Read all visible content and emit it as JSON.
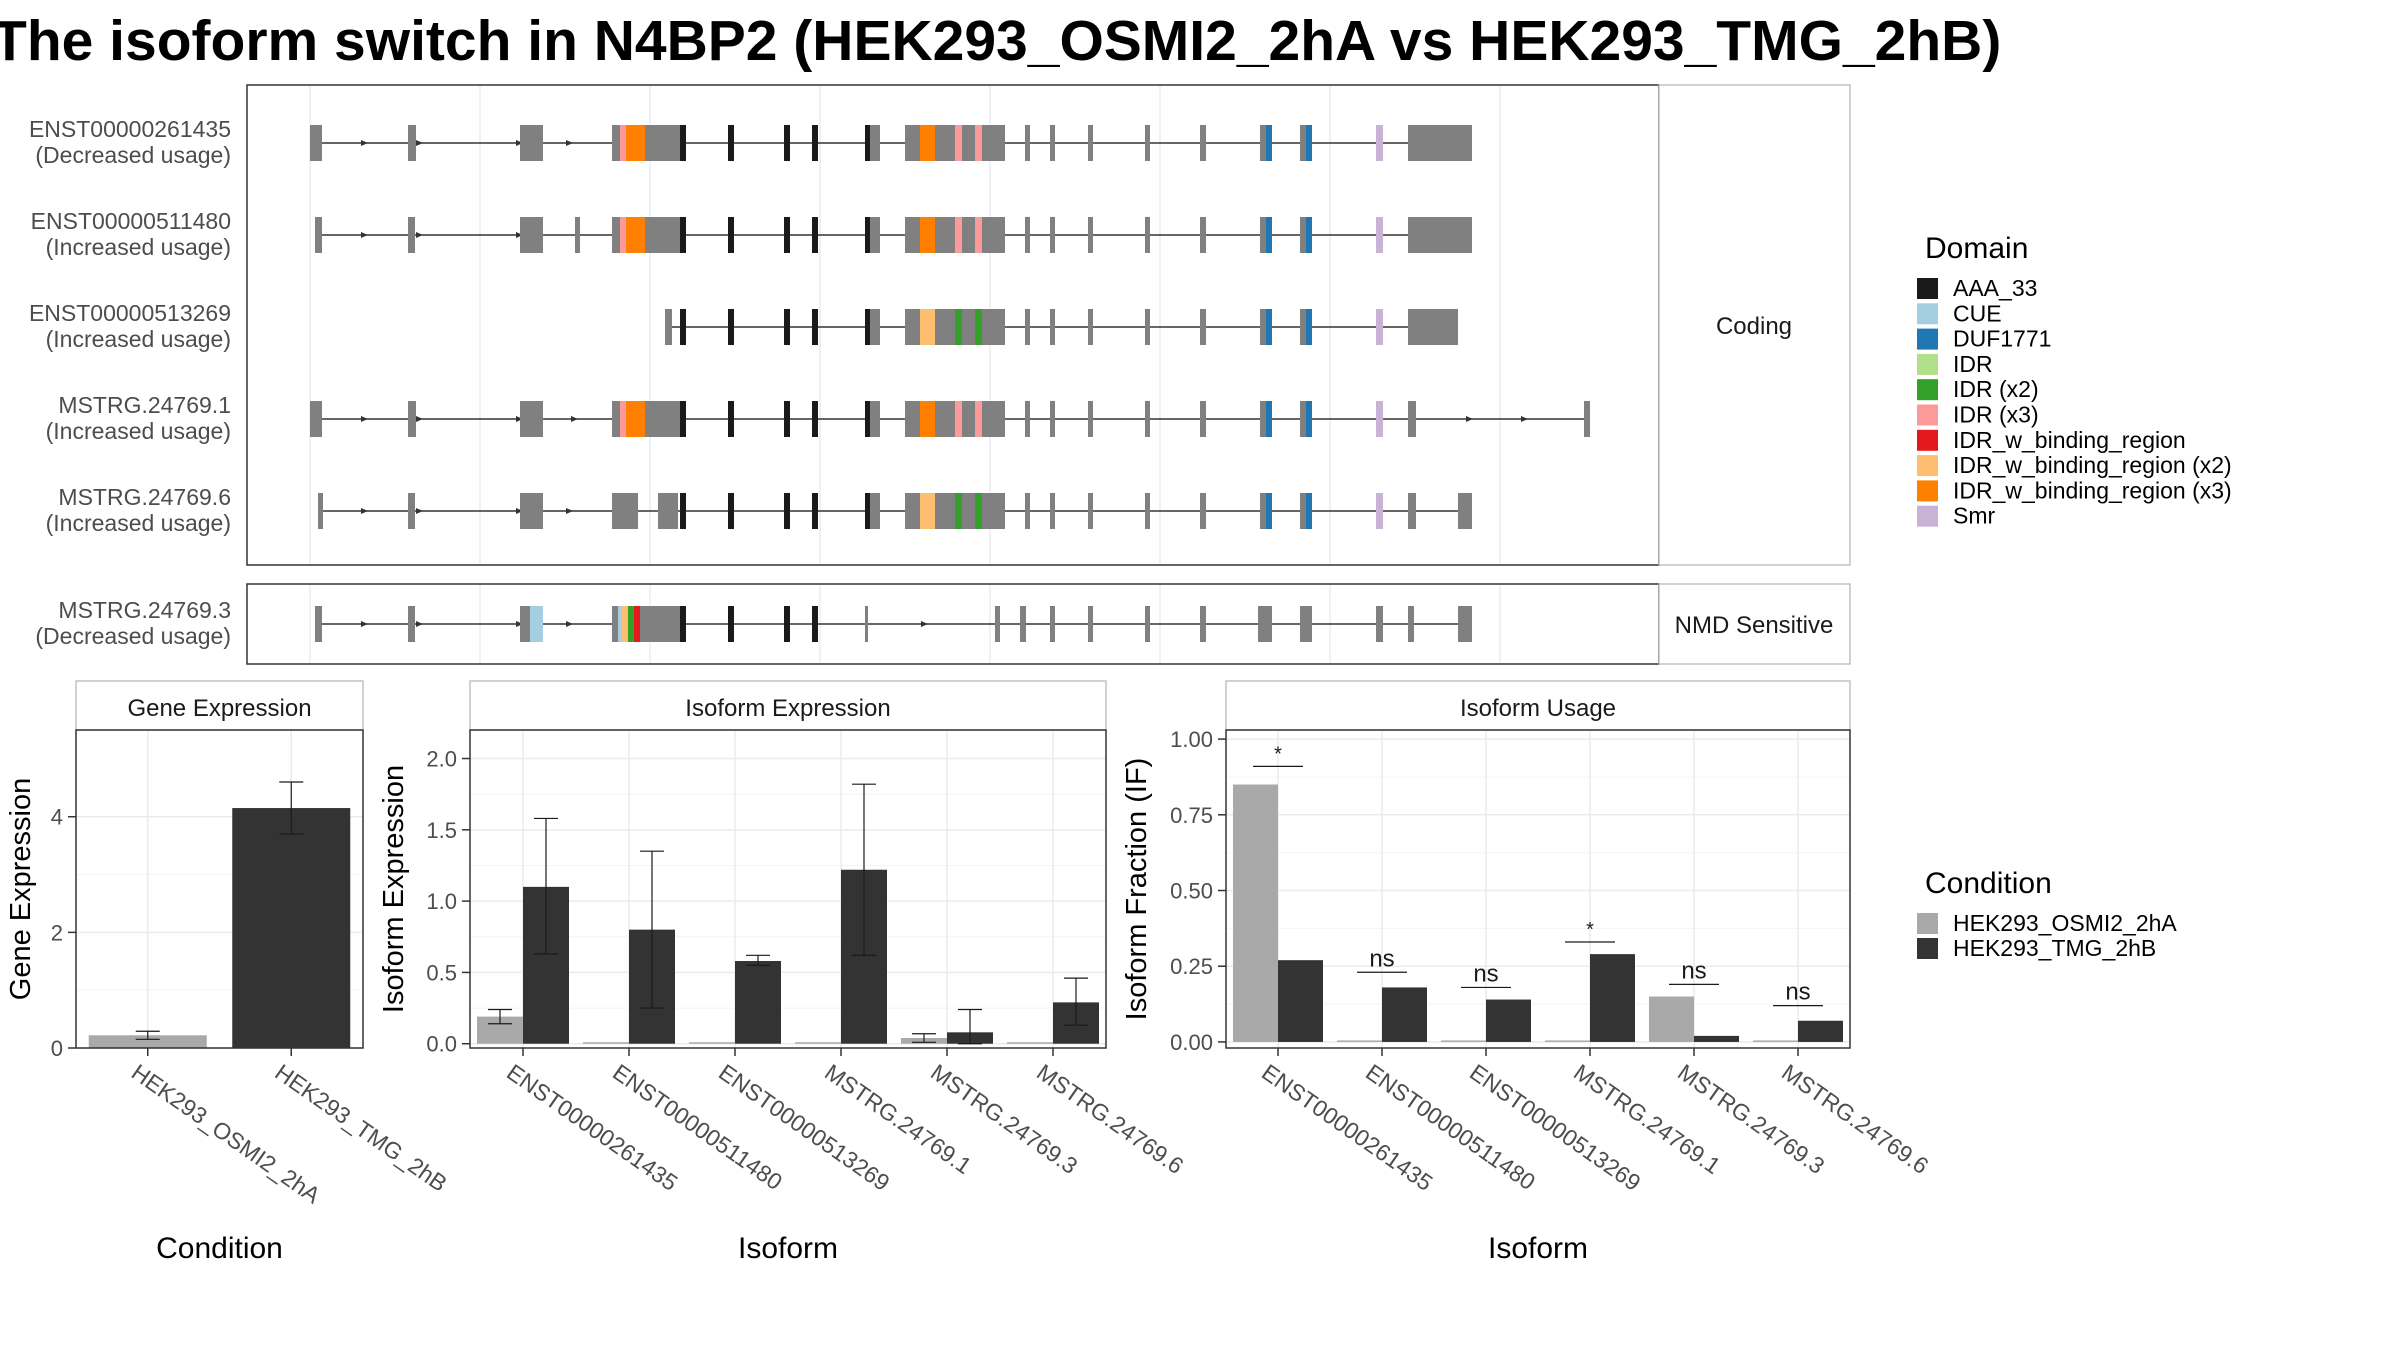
{
  "title": "The isoform switch in N4BP2 (HEK293_OSMI2_2hA vs HEK293_TMG_2hB)",
  "colors": {
    "exon_grey": "#808080",
    "AAA_33": "#1a1a1a",
    "CUE": "#a6cee3",
    "DUF1771": "#1f78b4",
    "IDR": "#b2df8a",
    "IDR (x2)": "#33a02c",
    "IDR (x3)": "#fb9a99",
    "IDR_w_binding_region": "#e31a1c",
    "IDR_w_binding_region (x2)": "#fdbf6f",
    "IDR_w_binding_region (x3)": "#ff7f00",
    "Smr": "#cab2d6",
    "HEK293_OSMI2_2hA": "#a9a9a9",
    "HEK293_TMG_2hB": "#333333"
  },
  "transcripts": {
    "coding_strip": "Coding",
    "nmd_strip": "NMD Sensitive",
    "rows": [
      {
        "id": "ENST00000261435",
        "usage": "(Decreased usage)",
        "group": "coding"
      },
      {
        "id": "ENST00000511480",
        "usage": "(Increased usage)",
        "group": "coding"
      },
      {
        "id": "ENST00000513269",
        "usage": "(Increased usage)",
        "group": "coding"
      },
      {
        "id": "MSTRG.24769.1",
        "usage": "(Increased usage)",
        "group": "coding"
      },
      {
        "id": "MSTRG.24769.6",
        "usage": "(Increased usage)",
        "group": "coding"
      },
      {
        "id": "MSTRG.24769.3",
        "usage": "(Decreased usage)",
        "group": "nmd"
      }
    ]
  },
  "legend_domain": {
    "title": "Domain",
    "items": [
      "AAA_33",
      "CUE",
      "DUF1771",
      "IDR",
      "IDR (x2)",
      "IDR (x3)",
      "IDR_w_binding_region",
      "IDR_w_binding_region (x2)",
      "IDR_w_binding_region (x3)",
      "Smr"
    ]
  },
  "legend_condition": {
    "title": "Condition",
    "items": [
      "HEK293_OSMI2_2hA",
      "HEK293_TMG_2hB"
    ]
  },
  "chart_data": [
    {
      "type": "bar",
      "title": "Gene Expression",
      "xlabel": "Condition",
      "ylabel": "Gene Expression",
      "categories": [
        "HEK293_OSMI2_2hA",
        "HEK293_TMG_2hB"
      ],
      "values": [
        0.22,
        4.15
      ],
      "errors": [
        [
          0.15,
          0.29
        ],
        [
          3.7,
          4.6
        ]
      ],
      "ylim": [
        0,
        5.5
      ],
      "yticks": [
        0,
        2,
        4
      ],
      "grid": true
    },
    {
      "type": "bar",
      "title": "Isoform Expression",
      "xlabel": "Isoform",
      "ylabel": "Isoform Expression",
      "categories": [
        "ENST00000261435",
        "ENST00000511480",
        "ENST00000513269",
        "MSTRG.24769.1",
        "MSTRG.24769.3",
        "MSTRG.24769.6"
      ],
      "series": [
        {
          "name": "HEK293_OSMI2_2hA",
          "values": [
            0.19,
            0.0,
            0.0,
            0.0,
            0.04,
            0.0
          ],
          "errors": [
            [
              0.14,
              0.24
            ],
            null,
            null,
            null,
            [
              0.01,
              0.07
            ],
            null
          ]
        },
        {
          "name": "HEK293_TMG_2hB",
          "values": [
            1.1,
            0.8,
            0.58,
            1.22,
            0.08,
            0.29
          ],
          "errors": [
            [
              0.63,
              1.58
            ],
            [
              0.25,
              1.35
            ],
            [
              0.55,
              0.62
            ],
            [
              0.62,
              1.82
            ],
            [
              0.0,
              0.24
            ],
            [
              0.13,
              0.46
            ]
          ]
        }
      ],
      "ylim": [
        -0.03,
        2.2
      ],
      "yticks": [
        0.0,
        0.5,
        1.0,
        1.5,
        2.0
      ],
      "ytick_labels": [
        "0.0",
        "0.5",
        "1.0",
        "1.5",
        "2.0"
      ],
      "grid": true
    },
    {
      "type": "bar",
      "title": "Isoform Usage",
      "xlabel": "Isoform",
      "ylabel": "Isoform Fraction (IF)",
      "categories": [
        "ENST00000261435",
        "ENST00000511480",
        "ENST00000513269",
        "MSTRG.24769.1",
        "MSTRG.24769.3",
        "MSTRG.24769.6"
      ],
      "series": [
        {
          "name": "HEK293_OSMI2_2hA",
          "values": [
            0.85,
            0.0,
            0.0,
            0.0,
            0.15,
            0.0
          ]
        },
        {
          "name": "HEK293_TMG_2hB",
          "values": [
            0.27,
            0.18,
            0.14,
            0.29,
            0.02,
            0.07
          ]
        }
      ],
      "significance": [
        "*",
        "ns",
        "ns",
        "*",
        "ns",
        "ns"
      ],
      "significance_y": [
        0.91,
        0.23,
        0.18,
        0.33,
        0.19,
        0.12
      ],
      "ylim": [
        -0.02,
        1.03
      ],
      "yticks": [
        0.0,
        0.25,
        0.5,
        0.75,
        1.0
      ],
      "ytick_labels": [
        "0.00",
        "0.25",
        "0.50",
        "0.75",
        "1.00"
      ],
      "grid": true
    }
  ]
}
